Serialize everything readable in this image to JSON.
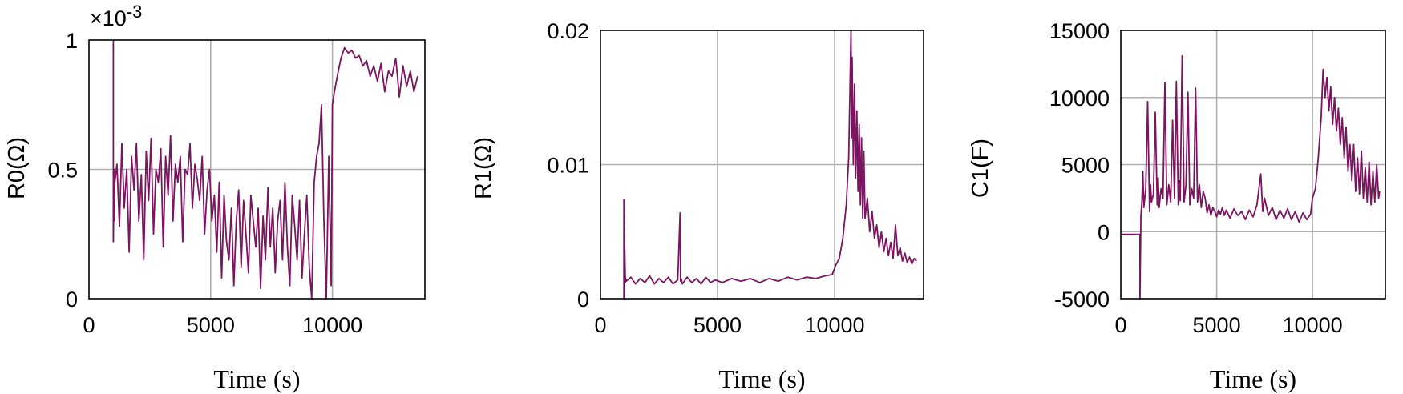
{
  "series_color": "#7b1560",
  "chart_data": [
    {
      "type": "line",
      "xlabel": "Time (s)",
      "ylabel": "R0(Ω)",
      "multiplier": "×10",
      "multiplier_exp": "-3",
      "xlim": [
        0,
        13800
      ],
      "ylim": [
        0,
        1
      ],
      "xticks": [
        "0",
        "5000",
        "10000"
      ],
      "yticks": [
        "0",
        "0.5",
        "1"
      ],
      "grid": true,
      "series": [
        {
          "x": [
            0,
            1000,
            1000,
            1030,
            1030,
            1060,
            1150,
            1250,
            1350,
            1450,
            1550,
            1650,
            1750,
            1850,
            1950,
            2050,
            2150,
            2250,
            2350,
            2450,
            2550,
            2650,
            2750,
            2850,
            2950,
            3050,
            3150,
            3250,
            3350,
            3450,
            3550,
            3650,
            3750,
            3850,
            3950,
            4050,
            4150,
            4250,
            4350,
            4450,
            4550,
            4650,
            4750,
            4850,
            4950,
            5050,
            5150,
            5250,
            5350,
            5450,
            5550,
            5650,
            5750,
            5850,
            5950,
            6050,
            6150,
            6250,
            6350,
            6450,
            6550,
            6650,
            6750,
            6850,
            6950,
            7050,
            7150,
            7250,
            7350,
            7450,
            7550,
            7650,
            7750,
            7850,
            7950,
            8050,
            8150,
            8250,
            8350,
            8450,
            8550,
            8650,
            8750,
            8850,
            8950,
            9050,
            9150,
            9250,
            9350,
            9450,
            9550,
            9650,
            9750,
            9850,
            9950,
            10000,
            10080,
            10200,
            10350,
            10500,
            10650,
            10800,
            10950,
            11100,
            11250,
            11400,
            11550,
            11700,
            11850,
            12000,
            12150,
            12300,
            12450,
            12600,
            12750,
            12900,
            13050,
            13200,
            13350,
            13500
          ],
          "y": [
            null,
            1.0,
            0.22,
            0.5,
            0.3,
            0.45,
            0.52,
            0.28,
            0.6,
            0.35,
            0.5,
            0.18,
            0.55,
            0.42,
            0.6,
            0.3,
            0.48,
            0.15,
            0.57,
            0.38,
            0.62,
            0.25,
            0.5,
            0.45,
            0.58,
            0.2,
            0.55,
            0.4,
            0.63,
            0.3,
            0.52,
            0.45,
            0.55,
            0.22,
            0.5,
            0.48,
            0.6,
            0.35,
            0.52,
            0.46,
            0.38,
            0.55,
            0.25,
            0.42,
            0.5,
            0.3,
            0.4,
            0.18,
            0.45,
            0.08,
            0.4,
            0.22,
            0.15,
            0.35,
            0.05,
            0.3,
            0.42,
            0.12,
            0.38,
            0.25,
            0.1,
            0.4,
            0.3,
            0.2,
            0.35,
            0.04,
            0.32,
            0.15,
            0.43,
            0.2,
            0.35,
            0.1,
            0.3,
            0.38,
            0.15,
            0.45,
            0.2,
            0.05,
            0.4,
            0.28,
            0.15,
            0.38,
            0.08,
            0.25,
            0.4,
            0.12,
            0.0,
            0.45,
            0.55,
            0.6,
            0.75,
            0.3,
            0.0,
            0.55,
            0.05,
            0.75,
            0.8,
            0.86,
            0.93,
            0.97,
            0.95,
            0.96,
            0.93,
            0.94,
            0.9,
            0.92,
            0.86,
            0.9,
            0.84,
            0.91,
            0.8,
            0.88,
            0.86,
            0.93,
            0.78,
            0.9,
            0.82,
            0.88,
            0.8,
            0.86
          ]
        }
      ]
    },
    {
      "type": "line",
      "xlabel": "Time (s)",
      "ylabel": "R1(Ω)",
      "xlim": [
        0,
        13800
      ],
      "ylim": [
        0,
        0.02
      ],
      "xticks": [
        "0",
        "5000",
        "10000"
      ],
      "yticks": [
        "0",
        "0.01",
        "0.02"
      ],
      "grid": true,
      "series": [
        {
          "x": [
            0,
            1000,
            1000,
            1060,
            1060,
            1100,
            1300,
            1500,
            1700,
            1900,
            2100,
            2300,
            2500,
            2700,
            2900,
            3100,
            3300,
            3400,
            3420,
            3440,
            3500,
            3700,
            3900,
            4100,
            4300,
            4500,
            4700,
            4900,
            5200,
            5600,
            6000,
            6400,
            6800,
            7200,
            7600,
            8000,
            8400,
            8800,
            9200,
            9600,
            9900,
            10050,
            10200,
            10350,
            10500,
            10600,
            10650,
            10700,
            10720,
            10750,
            10800,
            10850,
            10900,
            10950,
            11000,
            11050,
            11100,
            11150,
            11200,
            11250,
            11300,
            11400,
            11500,
            11600,
            11700,
            11800,
            11900,
            12000,
            12100,
            12200,
            12300,
            12400,
            12500,
            12600,
            12700,
            12800,
            12900,
            13000,
            13100,
            13200,
            13300,
            13400,
            13500
          ],
          "y": [
            null,
            0.0,
            0.0074,
            0.0012,
            0.0016,
            0.0013,
            0.0016,
            0.0011,
            0.0015,
            0.0012,
            0.0017,
            0.0011,
            0.0015,
            0.0012,
            0.0016,
            0.0011,
            0.0014,
            0.0064,
            0.0013,
            0.0015,
            0.0011,
            0.0016,
            0.0012,
            0.0015,
            0.0011,
            0.0016,
            0.0012,
            0.0014,
            0.0012,
            0.0015,
            0.0013,
            0.0015,
            0.0012,
            0.0015,
            0.0013,
            0.0016,
            0.0014,
            0.0016,
            0.0015,
            0.0017,
            0.0018,
            0.0025,
            0.003,
            0.0045,
            0.007,
            0.0105,
            0.015,
            0.02,
            0.012,
            0.018,
            0.01,
            0.016,
            0.009,
            0.014,
            0.008,
            0.013,
            0.007,
            0.012,
            0.006,
            0.011,
            0.006,
            0.0075,
            0.005,
            0.0065,
            0.0045,
            0.0055,
            0.0038,
            0.005,
            0.0035,
            0.0045,
            0.0032,
            0.0042,
            0.003,
            0.0055,
            0.0032,
            0.0038,
            0.0028,
            0.0034,
            0.0027,
            0.0031,
            0.0026,
            0.003,
            0.0028
          ]
        }
      ]
    },
    {
      "type": "line",
      "xlabel": "Time (s)",
      "ylabel": "C1(F)",
      "xlim": [
        0,
        13800
      ],
      "ylim": [
        -5000,
        15000
      ],
      "xticks": [
        "0",
        "5000",
        "10000"
      ],
      "yticks": [
        "-5000",
        "0",
        "5000",
        "10000",
        "15000"
      ],
      "grid": true,
      "series": [
        {
          "x": [
            0,
            1000,
            1000,
            1050,
            1100,
            1150,
            1200,
            1300,
            1400,
            1500,
            1550,
            1600,
            1700,
            1800,
            1900,
            1950,
            2000,
            2100,
            2200,
            2300,
            2400,
            2500,
            2600,
            2700,
            2800,
            2900,
            3000,
            3050,
            3100,
            3200,
            3300,
            3400,
            3500,
            3600,
            3700,
            3800,
            3900,
            4000,
            4100,
            4200,
            4300,
            4400,
            4500,
            4600,
            4700,
            4800,
            4900,
            5000,
            5100,
            5200,
            5300,
            5400,
            5500,
            5700,
            5900,
            6100,
            6300,
            6500,
            6700,
            6900,
            7100,
            7300,
            7400,
            7500,
            7700,
            7900,
            8100,
            8300,
            8500,
            8700,
            8900,
            9100,
            9300,
            9500,
            9700,
            9900,
            10000,
            10150,
            10300,
            10450,
            10550,
            10650,
            10750,
            10850,
            10950,
            11050,
            11150,
            11250,
            11350,
            11450,
            11550,
            11650,
            11750,
            11850,
            11950,
            12050,
            12150,
            12250,
            12350,
            12450,
            12550,
            12650,
            12750,
            12850,
            12950,
            13050,
            13150,
            13250,
            13350,
            13450,
            13500
          ],
          "y": [
            -200,
            -200,
            -5000,
            1200,
            2200,
            4500,
            1800,
            3200,
            9700,
            1500,
            3500,
            2200,
            2800,
            8900,
            2000,
            4000,
            1800,
            3200,
            2500,
            11100,
            2000,
            3500,
            2200,
            8300,
            2500,
            11200,
            2000,
            3800,
            2300,
            13100,
            2200,
            3500,
            10400,
            2000,
            3200,
            2500,
            10700,
            2200,
            3500,
            1800,
            3000,
            2500,
            1400,
            2000,
            1200,
            1800,
            1500,
            1100,
            1600,
            1300,
            1800,
            1200,
            1600,
            1000,
            1700,
            1200,
            1500,
            900,
            1600,
            1100,
            2000,
            4300,
            1500,
            2500,
            1200,
            1800,
            900,
            1600,
            1000,
            1700,
            900,
            1500,
            700,
            1400,
            900,
            1300,
            2500,
            3200,
            5500,
            8500,
            12100,
            10000,
            11500,
            9000,
            10800,
            8000,
            10000,
            7500,
            9200,
            6500,
            8500,
            5500,
            7800,
            4500,
            6500,
            3800,
            6500,
            3000,
            5500,
            2800,
            6000,
            2500,
            4800,
            2200,
            5200,
            2000,
            4500,
            2200,
            5000,
            2500,
            3000
          ]
        }
      ]
    }
  ]
}
